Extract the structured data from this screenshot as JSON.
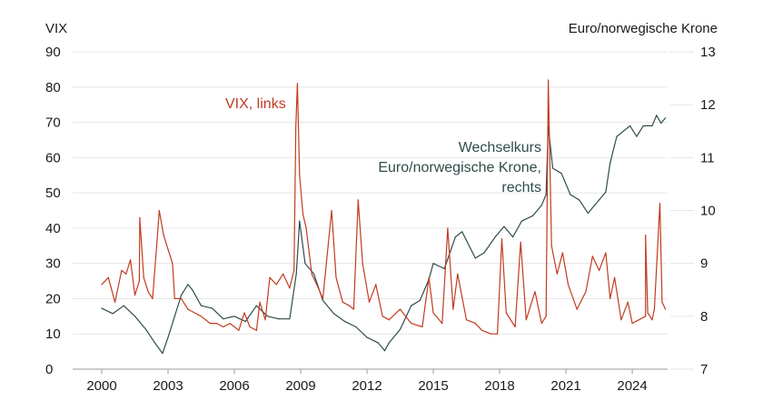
{
  "chart_data": {
    "type": "line",
    "left_axis": {
      "title": "VIX",
      "range": [
        0,
        90
      ],
      "ticks": [
        "0",
        "10",
        "20",
        "30",
        "40",
        "50",
        "60",
        "70",
        "80",
        "90"
      ]
    },
    "right_axis": {
      "title": "Euro/norwegische Krone",
      "range": [
        7,
        13
      ],
      "ticks": [
        "7",
        "8",
        "9",
        "10",
        "11",
        "12",
        "13"
      ]
    },
    "x_axis": {
      "range": [
        2000,
        2025.6
      ],
      "ticks": [
        "2000",
        "2003",
        "2006",
        "2009",
        "2012",
        "2015",
        "2018",
        "2021",
        "2024"
      ]
    },
    "grid": "horizontal",
    "series": [
      {
        "name": "VIX, links",
        "axis": "left",
        "color": "#c23b22",
        "points": [
          [
            2000.0,
            24
          ],
          [
            2000.3,
            26
          ],
          [
            2000.6,
            19
          ],
          [
            2000.9,
            28
          ],
          [
            2001.1,
            27
          ],
          [
            2001.3,
            31
          ],
          [
            2001.5,
            21
          ],
          [
            2001.7,
            25
          ],
          [
            2001.72,
            43
          ],
          [
            2001.9,
            26
          ],
          [
            2002.1,
            22
          ],
          [
            2002.3,
            20
          ],
          [
            2002.5,
            36
          ],
          [
            2002.6,
            45
          ],
          [
            2002.8,
            38
          ],
          [
            2003.0,
            34
          ],
          [
            2003.2,
            30
          ],
          [
            2003.3,
            20
          ],
          [
            2003.6,
            20
          ],
          [
            2003.9,
            17
          ],
          [
            2004.2,
            16
          ],
          [
            2004.5,
            15
          ],
          [
            2004.9,
            13
          ],
          [
            2005.2,
            13
          ],
          [
            2005.5,
            12
          ],
          [
            2005.8,
            13
          ],
          [
            2006.2,
            11
          ],
          [
            2006.45,
            16
          ],
          [
            2006.7,
            12
          ],
          [
            2007.0,
            11
          ],
          [
            2007.15,
            19
          ],
          [
            2007.4,
            14
          ],
          [
            2007.6,
            26
          ],
          [
            2007.9,
            24
          ],
          [
            2008.2,
            27
          ],
          [
            2008.5,
            23
          ],
          [
            2008.7,
            28
          ],
          [
            2008.78,
            69
          ],
          [
            2008.85,
            81
          ],
          [
            2008.95,
            55
          ],
          [
            2009.1,
            44
          ],
          [
            2009.25,
            40
          ],
          [
            2009.5,
            27
          ],
          [
            2009.8,
            23
          ],
          [
            2010.0,
            20
          ],
          [
            2010.4,
            45
          ],
          [
            2010.6,
            26
          ],
          [
            2010.9,
            19
          ],
          [
            2011.2,
            18
          ],
          [
            2011.4,
            17
          ],
          [
            2011.6,
            48
          ],
          [
            2011.8,
            30
          ],
          [
            2012.1,
            19
          ],
          [
            2012.4,
            24
          ],
          [
            2012.7,
            15
          ],
          [
            2013.0,
            14
          ],
          [
            2013.5,
            17
          ],
          [
            2014.0,
            13
          ],
          [
            2014.5,
            12
          ],
          [
            2014.8,
            26
          ],
          [
            2015.0,
            16
          ],
          [
            2015.4,
            13
          ],
          [
            2015.65,
            40
          ],
          [
            2015.9,
            17
          ],
          [
            2016.1,
            27
          ],
          [
            2016.5,
            14
          ],
          [
            2016.9,
            13
          ],
          [
            2017.2,
            11
          ],
          [
            2017.6,
            10
          ],
          [
            2017.9,
            10
          ],
          [
            2018.1,
            37
          ],
          [
            2018.3,
            16
          ],
          [
            2018.7,
            12
          ],
          [
            2018.95,
            36
          ],
          [
            2019.2,
            14
          ],
          [
            2019.6,
            22
          ],
          [
            2019.9,
            13
          ],
          [
            2020.1,
            15
          ],
          [
            2020.2,
            82
          ],
          [
            2020.35,
            35
          ],
          [
            2020.6,
            27
          ],
          [
            2020.85,
            33
          ],
          [
            2021.1,
            24
          ],
          [
            2021.5,
            17
          ],
          [
            2021.9,
            22
          ],
          [
            2022.2,
            32
          ],
          [
            2022.5,
            28
          ],
          [
            2022.8,
            33
          ],
          [
            2023.0,
            20
          ],
          [
            2023.2,
            26
          ],
          [
            2023.5,
            14
          ],
          [
            2023.8,
            19
          ],
          [
            2024.0,
            13
          ],
          [
            2024.3,
            14
          ],
          [
            2024.6,
            15
          ],
          [
            2024.6,
            38
          ],
          [
            2024.7,
            16
          ],
          [
            2024.9,
            14
          ],
          [
            2025.0,
            17
          ],
          [
            2025.25,
            47
          ],
          [
            2025.35,
            19
          ],
          [
            2025.5,
            17
          ]
        ]
      },
      {
        "name": "Wechselkurs Euro/norwegische Krone, rechts",
        "axis": "right",
        "color": "#2e4d4b",
        "points": [
          [
            2000.0,
            8.15
          ],
          [
            2000.5,
            8.05
          ],
          [
            2001.0,
            8.2
          ],
          [
            2001.5,
            8.0
          ],
          [
            2002.0,
            7.75
          ],
          [
            2002.4,
            7.5
          ],
          [
            2002.75,
            7.3
          ],
          [
            2003.0,
            7.6
          ],
          [
            2003.3,
            8.0
          ],
          [
            2003.6,
            8.4
          ],
          [
            2003.9,
            8.6
          ],
          [
            2004.1,
            8.5
          ],
          [
            2004.5,
            8.2
          ],
          [
            2005.0,
            8.15
          ],
          [
            2005.5,
            7.95
          ],
          [
            2006.0,
            8.0
          ],
          [
            2006.5,
            7.9
          ],
          [
            2007.0,
            8.2
          ],
          [
            2007.5,
            8.0
          ],
          [
            2008.0,
            7.95
          ],
          [
            2008.5,
            7.95
          ],
          [
            2008.8,
            8.8
          ],
          [
            2008.95,
            9.8
          ],
          [
            2009.2,
            9.0
          ],
          [
            2009.6,
            8.8
          ],
          [
            2010.0,
            8.3
          ],
          [
            2010.5,
            8.05
          ],
          [
            2011.0,
            7.9
          ],
          [
            2011.5,
            7.8
          ],
          [
            2012.0,
            7.6
          ],
          [
            2012.5,
            7.5
          ],
          [
            2012.8,
            7.35
          ],
          [
            2013.0,
            7.5
          ],
          [
            2013.5,
            7.75
          ],
          [
            2014.0,
            8.2
          ],
          [
            2014.4,
            8.3
          ],
          [
            2014.8,
            8.7
          ],
          [
            2015.0,
            9.0
          ],
          [
            2015.5,
            8.9
          ],
          [
            2016.0,
            9.5
          ],
          [
            2016.3,
            9.6
          ],
          [
            2016.9,
            9.1
          ],
          [
            2017.3,
            9.2
          ],
          [
            2017.8,
            9.5
          ],
          [
            2018.2,
            9.7
          ],
          [
            2018.6,
            9.5
          ],
          [
            2019.0,
            9.8
          ],
          [
            2019.5,
            9.9
          ],
          [
            2019.9,
            10.1
          ],
          [
            2020.1,
            10.3
          ],
          [
            2020.2,
            11.6
          ],
          [
            2020.4,
            10.8
          ],
          [
            2020.8,
            10.7
          ],
          [
            2021.2,
            10.3
          ],
          [
            2021.6,
            10.2
          ],
          [
            2022.0,
            9.95
          ],
          [
            2022.5,
            10.2
          ],
          [
            2022.8,
            10.35
          ],
          [
            2023.0,
            10.9
          ],
          [
            2023.3,
            11.4
          ],
          [
            2023.6,
            11.5
          ],
          [
            2023.9,
            11.6
          ],
          [
            2024.2,
            11.4
          ],
          [
            2024.5,
            11.6
          ],
          [
            2024.9,
            11.6
          ],
          [
            2025.1,
            11.8
          ],
          [
            2025.3,
            11.65
          ],
          [
            2025.5,
            11.75
          ]
        ]
      }
    ],
    "annotations": [
      {
        "text": "VIX, links",
        "series": 0
      },
      {
        "text": "Wechselkurs",
        "series": 1
      },
      {
        "text": "Euro/norwegische Krone,",
        "series": 1
      },
      {
        "text": "rechts",
        "series": 1
      }
    ]
  }
}
